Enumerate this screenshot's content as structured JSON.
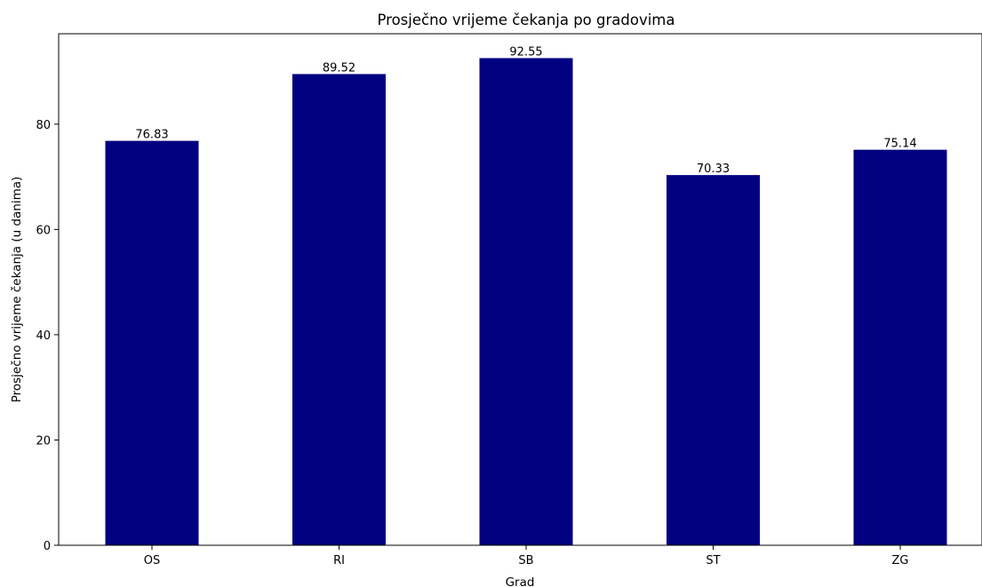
{
  "chart_data": {
    "type": "bar",
    "title": "Prosječno vrijeme čekanja po gradovima",
    "xlabel": "Grad",
    "ylabel": "Prosječno vrijeme čekanja (u danima)",
    "categories": [
      "OS",
      "RI",
      "SB",
      "ST",
      "ZG"
    ],
    "values": [
      76.83,
      89.52,
      92.55,
      70.33,
      75.14
    ],
    "data_labels": [
      "76.83",
      "89.52",
      "92.55",
      "70.33",
      "75.14"
    ],
    "ylim": [
      0,
      97.18
    ],
    "yticks": [
      0,
      20,
      40,
      60,
      80
    ],
    "bar_color": "#000080",
    "grid": false,
    "legend": "none"
  }
}
